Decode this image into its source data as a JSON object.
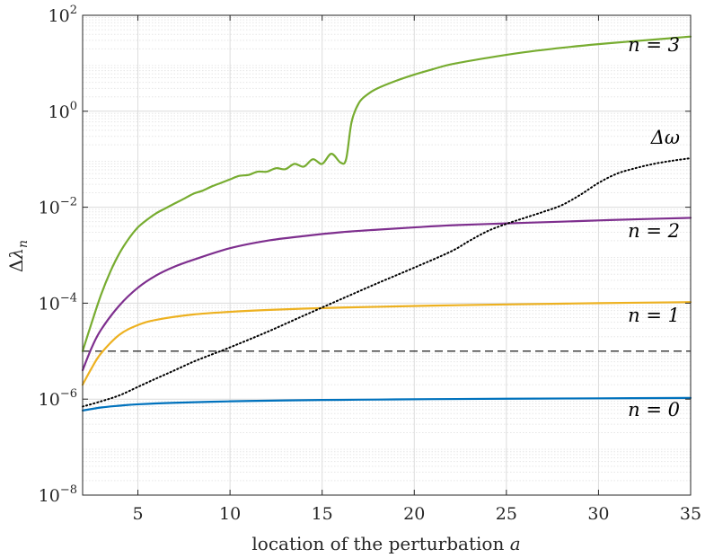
{
  "chart_data": {
    "type": "line",
    "title": "",
    "xlabel": "location of the perturbation a",
    "ylabel": "Δλ_n",
    "xlim": [
      2,
      35
    ],
    "ylim": [
      1e-08,
      100
    ],
    "yscale": "log",
    "grid": true,
    "x_ticks": [
      5,
      10,
      15,
      20,
      25,
      30,
      35
    ],
    "y_ticks": [
      {
        "value": 1e-08,
        "base": "10",
        "exp": "−8"
      },
      {
        "value": 1e-06,
        "base": "10",
        "exp": "−6"
      },
      {
        "value": 0.0001,
        "base": "10",
        "exp": "−4"
      },
      {
        "value": 0.01,
        "base": "10",
        "exp": "−2"
      },
      {
        "value": 1,
        "base": "10",
        "exp": "0"
      },
      {
        "value": 100,
        "base": "10",
        "exp": "2"
      }
    ],
    "threshold": {
      "value": 1e-05,
      "style": "dashed",
      "color": "#000000"
    },
    "series": [
      {
        "key": "n0",
        "name": "n = 0",
        "color": "#0072BD",
        "style": "solid",
        "x": [
          2,
          3,
          4,
          5,
          7,
          10,
          13,
          15,
          18,
          21,
          25,
          30,
          35
        ],
        "y": [
          5.8e-07,
          6.7e-07,
          7.3e-07,
          7.8e-07,
          8.4e-07,
          9e-07,
          9.4e-07,
          9.6e-07,
          9.8e-07,
          1e-06,
          1.02e-06,
          1.04e-06,
          1.06e-06
        ]
      },
      {
        "key": "n1",
        "name": "n = 1",
        "color": "#EDB120",
        "style": "solid",
        "x": [
          2,
          2.5,
          3,
          4,
          5,
          6,
          8,
          10,
          12,
          15,
          18,
          21,
          25,
          30,
          35
        ],
        "y": [
          2e-06,
          4.5e-06,
          9e-06,
          2.2e-05,
          3.5e-05,
          4.5e-05,
          5.8e-05,
          6.6e-05,
          7.2e-05,
          7.9e-05,
          8.4e-05,
          8.9e-05,
          9.4e-05,
          0.0001,
          0.000105
        ]
      },
      {
        "key": "n2",
        "name": "n = 2",
        "color": "#7E2F8E",
        "style": "solid",
        "x": [
          2,
          2.5,
          3,
          4,
          5,
          6,
          7,
          8,
          10,
          12,
          14,
          16,
          18,
          20,
          22,
          25,
          28,
          30,
          32,
          35
        ],
        "y": [
          4e-06,
          1.2e-05,
          2.8e-05,
          9e-05,
          0.00021,
          0.00038,
          0.00058,
          0.0008,
          0.0014,
          0.002,
          0.0025,
          0.003,
          0.0034,
          0.0038,
          0.0042,
          0.0046,
          0.005,
          0.0053,
          0.0056,
          0.006
        ]
      },
      {
        "key": "n3",
        "name": "n = 3",
        "color": "#77AC30",
        "style": "solid",
        "x": [
          2,
          2.5,
          3,
          3.5,
          4,
          4.5,
          5,
          5.5,
          6,
          6.5,
          7,
          7.5,
          8,
          8.5,
          9,
          9.5,
          10,
          10.5,
          11,
          11.5,
          12,
          12.5,
          13,
          13.5,
          14,
          14.5,
          15,
          15.5,
          16,
          16.3,
          16.6,
          17,
          17.5,
          18,
          19,
          20,
          21,
          22,
          24,
          26,
          28,
          30,
          32,
          35
        ],
        "y": [
          1e-05,
          4e-05,
          0.00015,
          0.00045,
          0.0011,
          0.0022,
          0.0038,
          0.0055,
          0.0075,
          0.0095,
          0.012,
          0.015,
          0.019,
          0.022,
          0.027,
          0.032,
          0.038,
          0.045,
          0.047,
          0.055,
          0.055,
          0.065,
          0.062,
          0.08,
          0.07,
          0.1,
          0.08,
          0.13,
          0.085,
          0.1,
          0.6,
          1.5,
          2.3,
          3.0,
          4.3,
          5.8,
          7.5,
          9.5,
          13,
          17,
          21,
          25,
          29,
          36
        ]
      },
      {
        "key": "dw",
        "name": "Δω",
        "color": "#000000",
        "style": "dotted",
        "x": [
          2,
          3,
          4,
          5,
          6,
          7,
          8,
          9,
          10,
          12,
          14,
          16,
          18,
          20,
          22,
          23,
          24,
          25,
          26,
          27,
          28,
          29,
          30,
          31,
          32,
          33,
          34,
          35
        ],
        "y": [
          7e-07,
          9e-07,
          1.2e-06,
          1.8e-06,
          2.7e-06,
          4e-06,
          6e-06,
          8.5e-06,
          1.2e-05,
          2.5e-05,
          5.5e-05,
          0.00012,
          0.00026,
          0.00055,
          0.0012,
          0.002,
          0.0032,
          0.0045,
          0.006,
          0.008,
          0.011,
          0.018,
          0.032,
          0.05,
          0.065,
          0.08,
          0.093,
          0.105
        ]
      }
    ],
    "labels": [
      {
        "series": "n3",
        "text": "n = 3"
      },
      {
        "series": "dw",
        "text": "Δω"
      },
      {
        "series": "n2",
        "text": "n = 2"
      },
      {
        "series": "n1",
        "text": "n = 1"
      },
      {
        "series": "n0",
        "text": "n = 0"
      }
    ]
  }
}
